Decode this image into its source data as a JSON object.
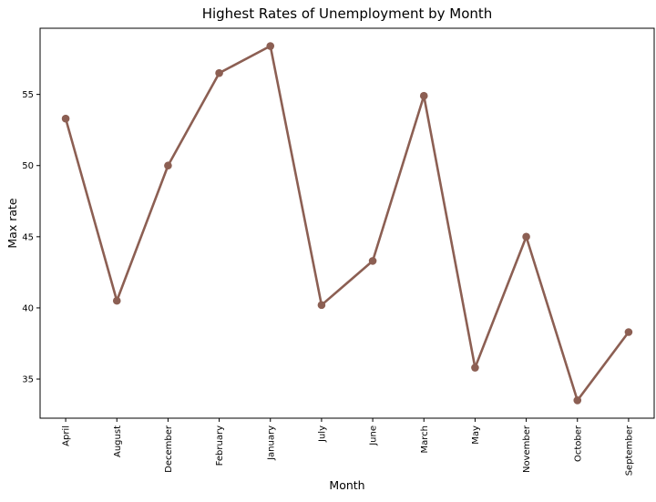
{
  "chart_data": {
    "type": "line",
    "title": "Highest Rates of Unemployment by Month",
    "xlabel": "Month",
    "ylabel": "Max rate",
    "categories": [
      "April",
      "August",
      "December",
      "February",
      "January",
      "July",
      "June",
      "March",
      "May",
      "November",
      "October",
      "September"
    ],
    "series": [
      {
        "values": [
          53.3,
          40.5,
          50.0,
          56.5,
          58.4,
          40.2,
          43.3,
          54.9,
          35.8,
          45.0,
          33.5,
          38.3
        ]
      }
    ],
    "yticks": [
      35,
      40,
      45,
      50,
      55
    ],
    "ylim": [
      32.25,
      59.65
    ],
    "grid": false,
    "line_color": "#8c5f53",
    "marker": "circle"
  }
}
